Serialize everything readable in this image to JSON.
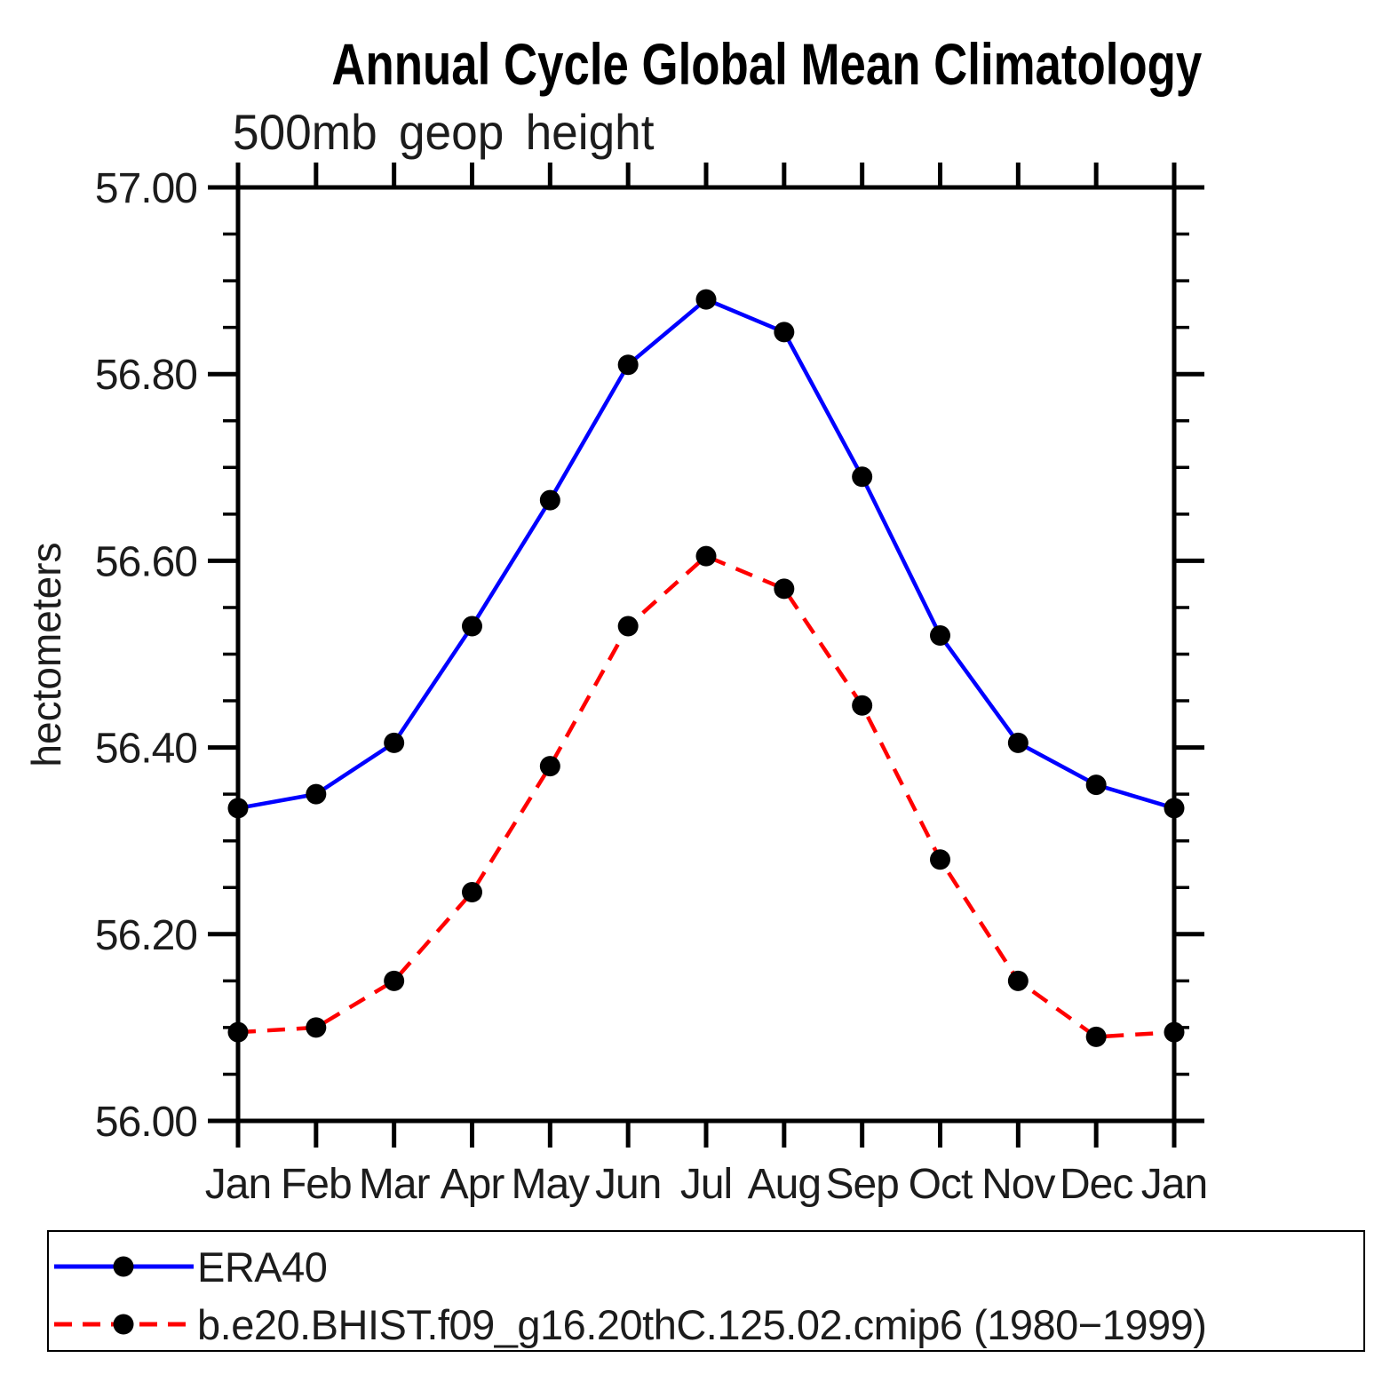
{
  "title": "Annual Cycle Global Mean Climatology",
  "subtitle": "500mb geop height",
  "ylabel": "hectometers",
  "chart_data": {
    "type": "line",
    "categories": [
      "Jan",
      "Feb",
      "Mar",
      "Apr",
      "May",
      "Jun",
      "Jul",
      "Aug",
      "Sep",
      "Oct",
      "Nov",
      "Dec",
      "Jan"
    ],
    "series": [
      {
        "name": "ERA40",
        "color": "#0000ff",
        "line_style": "solid",
        "marker": "filled-black-circle",
        "values": [
          56.335,
          56.35,
          56.405,
          56.53,
          56.665,
          56.81,
          56.88,
          56.845,
          56.69,
          56.52,
          56.405,
          56.36,
          56.335
        ]
      },
      {
        "name": "b.e20.BHIST.f09_g16.20thC.125.02.cmip6 (1980−1999)",
        "color": "#ff0000",
        "line_style": "dashed",
        "marker": "filled-black-circle",
        "values": [
          56.095,
          56.1,
          56.15,
          56.245,
          56.38,
          56.53,
          56.605,
          56.57,
          56.445,
          56.28,
          56.15,
          56.09,
          56.095
        ]
      }
    ],
    "ylim": [
      56.0,
      57.0
    ],
    "ytick_major": 0.2,
    "ytick_minor": 0.05,
    "ytick_labels": [
      "57.00",
      "56.80",
      "56.60",
      "56.40",
      "56.20",
      "56.00"
    ],
    "xlabel": "",
    "grid": false,
    "legend_position": "bottom-left-box",
    "axis_color": "#000000",
    "text_color": "#1c1c1c"
  }
}
